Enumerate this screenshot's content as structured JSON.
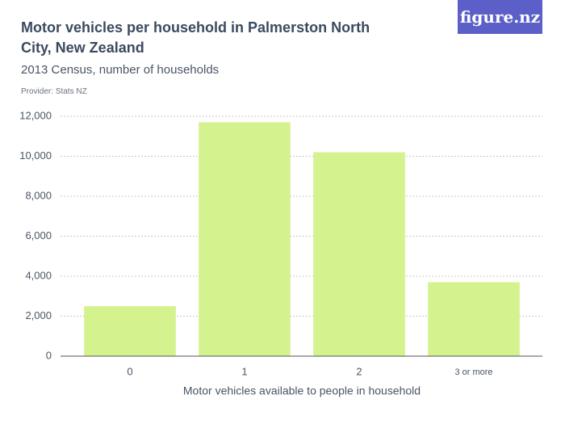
{
  "chart_data": {
    "type": "bar",
    "title": "Motor vehicles per household in Palmerston North City, New Zealand",
    "subtitle": "2013 Census, number of households",
    "provider": "Provider: Stats NZ",
    "logo": "figure.nz",
    "x_label": "Motor vehicles available to people in household",
    "categories": [
      "0",
      "1",
      "2",
      "3 or more"
    ],
    "values": [
      2500,
      11700,
      10200,
      3700
    ],
    "color": "#d4f28e",
    "ylim": [
      0,
      12000
    ],
    "yticks": [
      0,
      {
        "value": 2000,
        "label": "2,000"
      },
      {
        "value": 4000,
        "label": "4,000"
      },
      {
        "value": 6000,
        "label": "6,000"
      },
      {
        "value": 8000,
        "label": "8,000"
      },
      {
        "value": 10000,
        "label": "10,000"
      },
      {
        "value": 12000,
        "label": "12,000"
      }
    ],
    "grid": true
  }
}
